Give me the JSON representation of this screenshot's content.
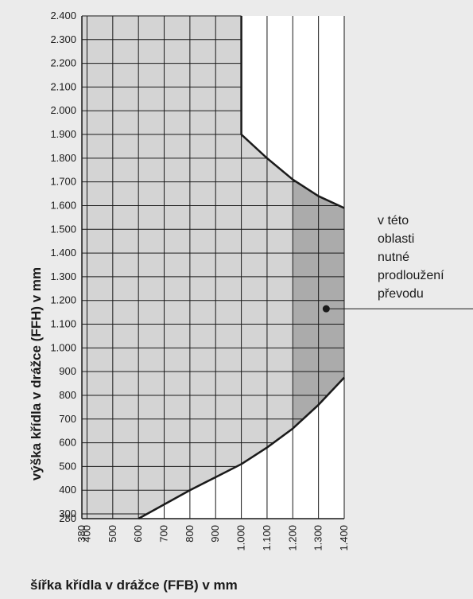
{
  "chart_data": {
    "type": "area",
    "xlabel": "šířka křídla v drážce (FFB) v mm",
    "ylabel": "výška křídla v drážce (FFH) v mm",
    "x_ticks": [
      380,
      400,
      500,
      600,
      700,
      800,
      900,
      1000,
      1100,
      1200,
      1300,
      1400
    ],
    "x_tick_labels": [
      "380",
      "400",
      "500",
      "600",
      "700",
      "800",
      "900",
      "1.000",
      "1.100",
      "1.200",
      "1.300",
      "1.400"
    ],
    "y_ticks": [
      280,
      300,
      400,
      500,
      600,
      700,
      800,
      900,
      1000,
      1100,
      1200,
      1300,
      1400,
      1500,
      1600,
      1700,
      1800,
      1900,
      2000,
      2100,
      2200,
      2300,
      2400
    ],
    "y_tick_labels": [
      "280",
      "300",
      "400",
      "500",
      "600",
      "700",
      "800",
      "900",
      "1.000",
      "1.100",
      "1.200",
      "1.300",
      "1.400",
      "1.500",
      "1.600",
      "1.700",
      "1.800",
      "1.900",
      "2.000",
      "2.100",
      "2.200",
      "2.300",
      "2.400"
    ],
    "xlim": [
      380,
      1400
    ],
    "ylim": [
      280,
      2400
    ],
    "grid": true,
    "application_area": {
      "top_boundary": {
        "x": [
          380,
          1000,
          1000,
          1100,
          1200,
          1300,
          1400
        ],
        "y": [
          2400,
          2400,
          1900,
          1800,
          1710,
          1640,
          1590
        ]
      },
      "bottom_boundary": {
        "x": [
          380,
          600,
          700,
          800,
          900,
          1000,
          1100,
          1200,
          1300,
          1400
        ],
        "y": [
          280,
          280,
          340,
          400,
          455,
          510,
          580,
          660,
          760,
          875
        ]
      }
    },
    "extension_region": {
      "x_from": 1200,
      "x_to": 1400
    },
    "colors": {
      "background": "#ebebeb",
      "area": "#d4d4d4",
      "extension": "#ababab",
      "grid": "#1a1a1a",
      "white": "#ffffff"
    }
  },
  "annotation": {
    "lines": [
      "v této",
      "oblasti",
      "nutné",
      "prodloužení",
      "převodu"
    ],
    "point": {
      "x": 1330,
      "y": 1165
    }
  }
}
